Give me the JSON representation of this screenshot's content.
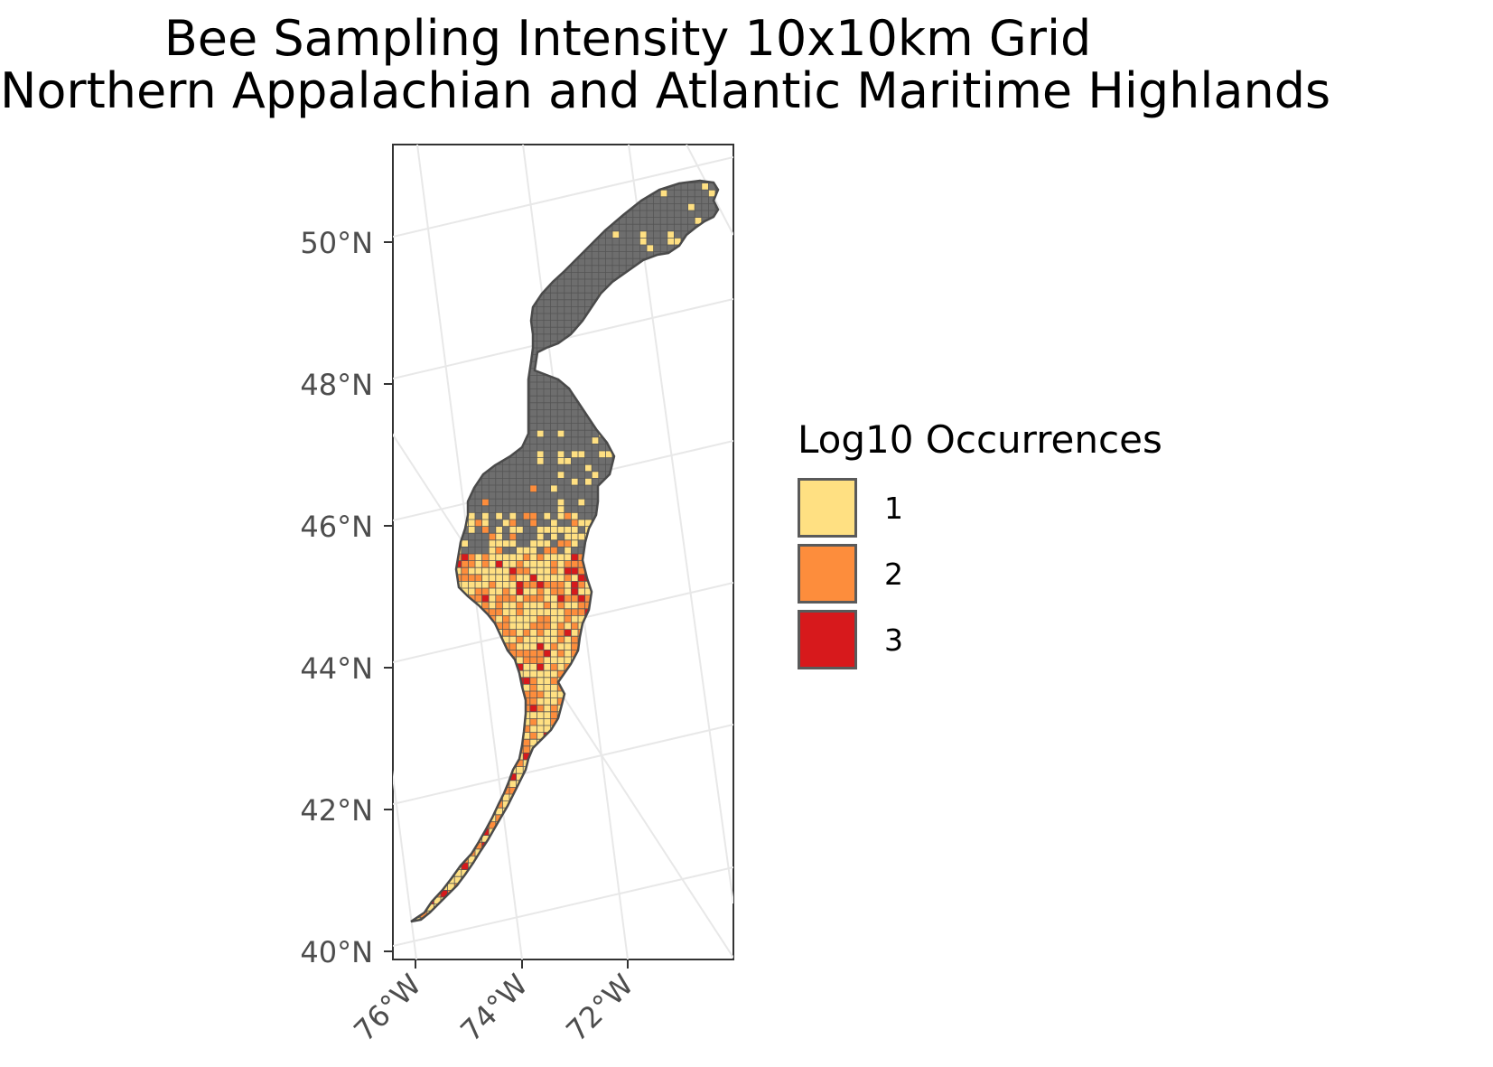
{
  "map": {
    "title_line1": "Bee Sampling Intensity 10x10km Grid",
    "title_line2": "Northern Appalachian and Atlantic Maritime Highlands",
    "lat_ticks": [
      "50°N",
      "48°N",
      "46°N",
      "44°N",
      "42°N",
      "40°N"
    ],
    "lon_ticks": [
      "76°W",
      "74°W",
      "72°W"
    ],
    "region_fill": "#6e6e6e",
    "grid_line_color": "#e8e8e8"
  },
  "legend": {
    "title": "Log10 Occurrences",
    "items": [
      {
        "label": "1",
        "color": "#ffe082"
      },
      {
        "label": "2",
        "color": "#fd8d3c"
      },
      {
        "label": "3",
        "color": "#d7191c"
      }
    ]
  }
}
